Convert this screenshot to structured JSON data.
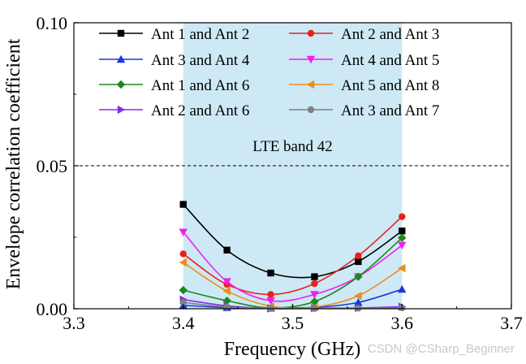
{
  "chart_data": {
    "type": "line",
    "xlabel": "Frequency (GHz)",
    "ylabel": "Envelope correlation coefficient",
    "xlim": [
      3.3,
      3.7
    ],
    "ylim": [
      0.0,
      0.1
    ],
    "x_ticks": [
      "3.3",
      "3.4",
      "3.5",
      "3.6",
      "3.7"
    ],
    "y_ticks": [
      "0.00",
      "0.05",
      "0.10"
    ],
    "reference_line": {
      "y": 0.05,
      "style": "dashed"
    },
    "shaded_band": {
      "x_range": [
        3.4,
        3.6
      ],
      "label": "LTE band 42",
      "color": "#cde9f5"
    },
    "legend_position": "top",
    "series": [
      {
        "name": "Ant 1 and Ant 2",
        "color": "#000000",
        "marker": "square",
        "x": [
          3.4,
          3.44,
          3.48,
          3.52,
          3.56,
          3.6
        ],
        "y": [
          0.0365,
          0.0205,
          0.0125,
          0.0112,
          0.0165,
          0.0272
        ]
      },
      {
        "name": "Ant 2 and Ant 3",
        "color": "#e8221b",
        "marker": "circle",
        "x": [
          3.4,
          3.44,
          3.48,
          3.52,
          3.56,
          3.6
        ],
        "y": [
          0.0192,
          0.0085,
          0.005,
          0.0088,
          0.0185,
          0.0322
        ]
      },
      {
        "name": "Ant 3 and Ant 4",
        "color": "#1a37e0",
        "marker": "triangle-up",
        "x": [
          3.4,
          3.44,
          3.48,
          3.52,
          3.56,
          3.6
        ],
        "y": [
          0.0012,
          0.0004,
          0.0002,
          0.0005,
          0.0022,
          0.0068
        ]
      },
      {
        "name": "Ant 4 and Ant 5",
        "color": "#f21ef2",
        "marker": "triangle-down",
        "x": [
          3.4,
          3.44,
          3.48,
          3.52,
          3.56,
          3.6
        ],
        "y": [
          0.0268,
          0.0095,
          0.0028,
          0.005,
          0.0112,
          0.0222
        ]
      },
      {
        "name": "Ant 1 and Ant 6",
        "color": "#1a8a1a",
        "marker": "diamond",
        "x": [
          3.4,
          3.44,
          3.48,
          3.52,
          3.56,
          3.6
        ],
        "y": [
          0.0065,
          0.0028,
          0.0003,
          0.0025,
          0.0112,
          0.0248
        ]
      },
      {
        "name": "Ant 5 and Ant 8",
        "color": "#f08c1a",
        "marker": "triangle-left",
        "x": [
          3.4,
          3.44,
          3.48,
          3.52,
          3.56,
          3.6
        ],
        "y": [
          0.0162,
          0.0062,
          0.0009,
          0.0006,
          0.0045,
          0.0142
        ]
      },
      {
        "name": "Ant 2 and Ant 6",
        "color": "#8a2be2",
        "marker": "triangle-right",
        "x": [
          3.4,
          3.44,
          3.48,
          3.52,
          3.56,
          3.6
        ],
        "y": [
          0.0032,
          0.001,
          0.0001,
          0.0002,
          0.0003,
          0.0007
        ]
      },
      {
        "name": "Ant 3 and Ant 7",
        "color": "#808080",
        "marker": "circle",
        "x": [
          3.4,
          3.44,
          3.48,
          3.52,
          3.56,
          3.6
        ],
        "y": [
          0.0022,
          0.0006,
          0.0001,
          0.0001,
          0.0002,
          0.0003
        ]
      }
    ]
  },
  "watermark": "CSDN @CSharp_Beginner"
}
